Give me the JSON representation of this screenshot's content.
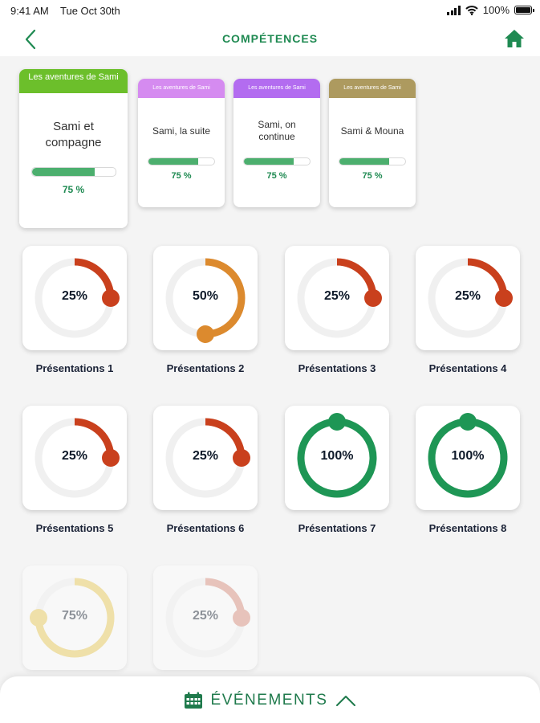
{
  "status_bar": {
    "time": "9:41 AM",
    "date": "Tue Oct 30th",
    "battery": "100%"
  },
  "header": {
    "title": "COMPÉTENCES",
    "back_icon": "chevron-left-icon",
    "home_icon": "home-icon"
  },
  "colors": {
    "accent": "#1f8a52",
    "red": "#c9401d",
    "orange": "#dc8a2e",
    "green": "#1e9655",
    "yellow": "#e9c84f"
  },
  "story_cards": [
    {
      "band": "Les aventures de Sami",
      "title": "Sami et compagne",
      "progress": 0.75,
      "percent_label": "75 %",
      "color": "#6cbf2b"
    },
    {
      "band": "Les aventures de Sami",
      "title": "Sami, la suite",
      "progress": 0.75,
      "percent_label": "75 %",
      "color": "#d58bf0"
    },
    {
      "band": "Les aventures de Sami",
      "title": "Sami, on continue",
      "progress": 0.75,
      "percent_label": "75 %",
      "color": "#b36cf0"
    },
    {
      "band": "Les aventures de Sami",
      "title": "Sami & Mouna",
      "progress": 0.75,
      "percent_label": "75 %",
      "color": "#ad9a5f"
    }
  ],
  "skills": [
    {
      "label": "Présentations 1",
      "value": 25,
      "value_label": "25%",
      "color": "#c9401d"
    },
    {
      "label": "Présentations 2",
      "value": 50,
      "value_label": "50%",
      "color": "#dc8a2e"
    },
    {
      "label": "Présentations 3",
      "value": 25,
      "value_label": "25%",
      "color": "#c9401d"
    },
    {
      "label": "Présentations 4",
      "value": 25,
      "value_label": "25%",
      "color": "#c9401d"
    },
    {
      "label": "Présentations 5",
      "value": 25,
      "value_label": "25%",
      "color": "#c9401d"
    },
    {
      "label": "Présentations 6",
      "value": 25,
      "value_label": "25%",
      "color": "#c9401d"
    },
    {
      "label": "Présentations 7",
      "value": 100,
      "value_label": "100%",
      "color": "#1e9655"
    },
    {
      "label": "Présentations 8",
      "value": 100,
      "value_label": "100%",
      "color": "#1e9655"
    },
    {
      "label": "",
      "value": 75,
      "value_label": "75%",
      "color": "#e9c84f"
    },
    {
      "label": "",
      "value": 25,
      "value_label": "25%",
      "color": "#d98a78"
    }
  ],
  "bottom_bar": {
    "label": "ÉVÉNEMENTS",
    "calendar_icon": "calendar-icon",
    "chevron_icon": "chevron-up-icon"
  }
}
